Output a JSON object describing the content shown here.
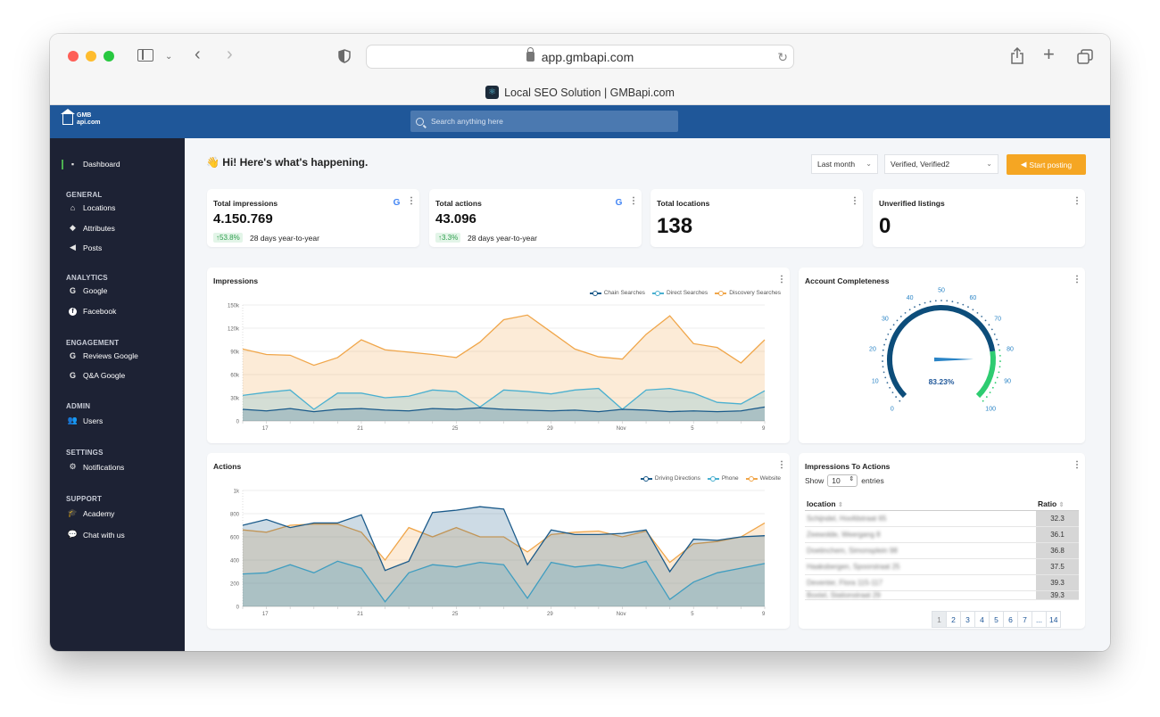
{
  "browser": {
    "url": "app.gmbapi.com",
    "tab_title": "Local SEO Solution | GMBapi.com"
  },
  "header": {
    "logo_line1": "GMB",
    "logo_line2": "api.com",
    "search_placeholder": "Search anything here"
  },
  "sidebar": {
    "dashboard": "Dashboard",
    "sections": [
      {
        "title": "GENERAL",
        "items": [
          "Locations",
          "Attributes",
          "Posts"
        ]
      },
      {
        "title": "ANALYTICS",
        "items": [
          "Google",
          "Facebook"
        ]
      },
      {
        "title": "ENGAGEMENT",
        "items": [
          "Reviews Google",
          "Q&A Google"
        ]
      },
      {
        "title": "ADMIN",
        "items": [
          "Users"
        ]
      },
      {
        "title": "SETTINGS",
        "items": [
          "Notifications"
        ]
      },
      {
        "title": "SUPPORT",
        "items": [
          "Academy",
          "Chat with us"
        ]
      }
    ]
  },
  "greeting": "👋 Hi! Here's what's happening.",
  "filters": {
    "period": "Last month",
    "locations": "Verified, Verified2",
    "post_button": "Start posting"
  },
  "kpis": [
    {
      "title": "Total impressions",
      "value": "4.150.769",
      "change": "53.8%",
      "period": "28 days year-to-year"
    },
    {
      "title": "Total actions",
      "value": "43.096",
      "change": "3.3%",
      "period": "28 days year-to-year"
    },
    {
      "title": "Total locations",
      "value": "138"
    },
    {
      "title": "Unverified listings",
      "value": "0"
    }
  ],
  "gauge": {
    "title": "Account Completeness",
    "value_label": "83.23%",
    "value": 83.23,
    "ticks": [
      "0",
      "10",
      "20",
      "30",
      "40",
      "50",
      "60",
      "70",
      "80",
      "90",
      "100"
    ]
  },
  "table": {
    "title": "Impressions To Actions",
    "show": "Show",
    "entries_value": "10",
    "entries": "entries",
    "columns": [
      "location",
      "Ratio"
    ],
    "rows": [
      {
        "location": "Schijndel, Hoofdstraat 65",
        "ratio": "32.3"
      },
      {
        "location": "Zeewolde, Weergang 8",
        "ratio": "36.1"
      },
      {
        "location": "Doetinchem, Simonsplein 98",
        "ratio": "36.8"
      },
      {
        "location": "Haaksbergen, Spoorstraat 25",
        "ratio": "37.5"
      },
      {
        "location": "Deventer, Flora 115-117",
        "ratio": "39.3"
      },
      {
        "location": "Boxtel, Stationstraat 29",
        "ratio": "39.3"
      }
    ],
    "pages": [
      "1",
      "2",
      "3",
      "4",
      "5",
      "6",
      "7",
      "...",
      "14"
    ]
  },
  "chart_data": [
    {
      "type": "area",
      "title": "Impressions",
      "x_ticks": [
        "17",
        "21",
        "25",
        "29",
        "Nov",
        "5",
        "9"
      ],
      "y_ticks": [
        "0",
        "30k",
        "60k",
        "90k",
        "120k",
        "150k"
      ],
      "ylim": [
        0,
        150000
      ],
      "n_points": 23,
      "series": [
        {
          "name": "Chain Searches",
          "color": "#1a5a8a",
          "values": [
            15000,
            13000,
            16000,
            12000,
            15000,
            16000,
            14000,
            13000,
            16000,
            15000,
            17000,
            15000,
            14000,
            13000,
            14000,
            12000,
            15000,
            14000,
            12000,
            13000,
            12000,
            13000,
            18000
          ]
        },
        {
          "name": "Direct Searches",
          "color": "#4ab0d0",
          "values": [
            33000,
            37000,
            40000,
            15000,
            36000,
            36000,
            30000,
            32000,
            40000,
            38000,
            18000,
            40000,
            38000,
            35000,
            40000,
            42000,
            15000,
            40000,
            42000,
            36000,
            24000,
            22000,
            39000
          ]
        },
        {
          "name": "Discovery Searches",
          "color": "#f0a64a",
          "values": [
            93000,
            86000,
            85000,
            72000,
            82000,
            105000,
            92000,
            89000,
            86000,
            82000,
            102000,
            131000,
            137000,
            115000,
            93000,
            83000,
            80000,
            112000,
            136000,
            100000,
            95000,
            75000,
            105000
          ]
        }
      ],
      "legend": "top-right"
    },
    {
      "type": "area",
      "title": "Actions",
      "x_ticks": [
        "17",
        "21",
        "25",
        "29",
        "Nov",
        "5",
        "9"
      ],
      "y_ticks": [
        "0",
        "200",
        "400",
        "600",
        "800",
        "1k"
      ],
      "ylim": [
        0,
        1000
      ],
      "n_points": 23,
      "series": [
        {
          "name": "Driving Directions",
          "color": "#1a5a8a",
          "values": [
            700,
            750,
            680,
            720,
            720,
            790,
            310,
            390,
            810,
            830,
            860,
            840,
            360,
            660,
            620,
            620,
            630,
            660,
            300,
            580,
            570,
            600,
            610
          ]
        },
        {
          "name": "Phone",
          "color": "#4ab0d0",
          "values": [
            280,
            290,
            360,
            290,
            390,
            330,
            40,
            290,
            360,
            340,
            380,
            360,
            70,
            380,
            340,
            360,
            330,
            390,
            60,
            210,
            290,
            330,
            370
          ]
        },
        {
          "name": "Website",
          "color": "#f0a64a",
          "values": [
            660,
            640,
            700,
            710,
            710,
            640,
            400,
            680,
            600,
            680,
            600,
            600,
            470,
            620,
            640,
            650,
            600,
            650,
            380,
            540,
            560,
            600,
            720
          ]
        }
      ],
      "legend": "top-right"
    }
  ]
}
